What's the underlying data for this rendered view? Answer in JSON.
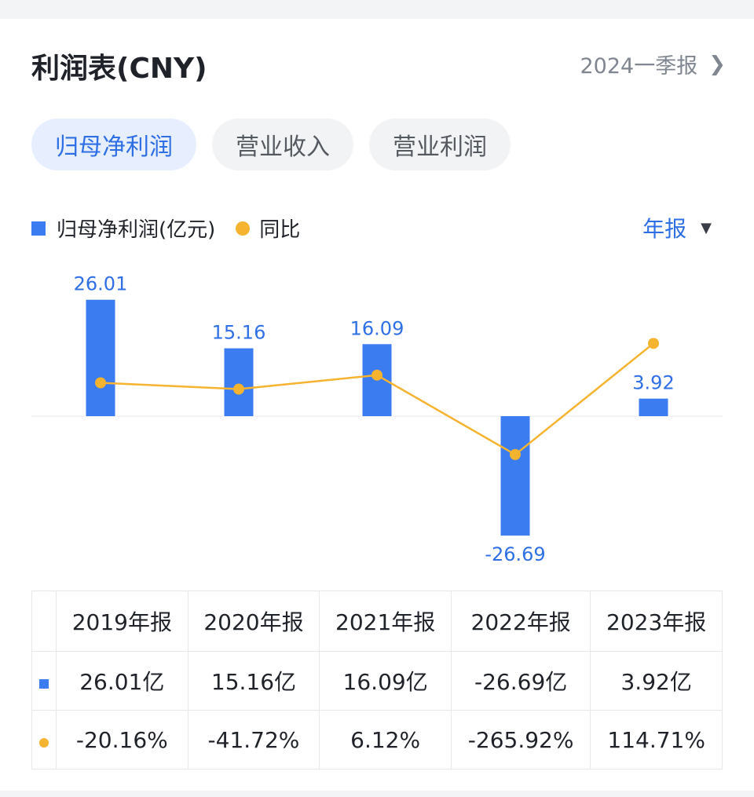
{
  "header": {
    "title": "利润表(CNY)",
    "period_link": "2024一季报"
  },
  "tabs": [
    {
      "label": "归母净利润",
      "active": true
    },
    {
      "label": "营业收入",
      "active": false
    },
    {
      "label": "营业利润",
      "active": false
    }
  ],
  "legend": {
    "bar": "归母净利润(亿元)",
    "line": "同比"
  },
  "period_select": "年报",
  "colors": {
    "bar": "#3b7cf0",
    "line": "#f5b32f",
    "positive": "#e24b4b",
    "negative": "#2aa16b",
    "accent": "#2f6fe5"
  },
  "chart_data": {
    "type": "bar",
    "categories": [
      "2019年报",
      "2020年报",
      "2021年报",
      "2022年报",
      "2023年报"
    ],
    "series": [
      {
        "name": "归母净利润(亿元)",
        "type": "bar",
        "values": [
          26.01,
          15.16,
          16.09,
          -26.69,
          3.92
        ],
        "labels": [
          "26.01",
          "15.16",
          "16.09",
          "-26.69",
          "3.92"
        ]
      },
      {
        "name": "同比",
        "type": "line",
        "values": [
          -20.16,
          -41.72,
          6.12,
          -265.92,
          114.71
        ]
      }
    ]
  },
  "table": {
    "headers": [
      "2019年报",
      "2020年报",
      "2021年报",
      "2022年报",
      "2023年报"
    ],
    "values": [
      "26.01亿",
      "15.16亿",
      "16.09亿",
      "-26.69亿",
      "3.92亿"
    ],
    "yoy": [
      "-20.16%",
      "-41.72%",
      "6.12%",
      "-265.92%",
      "114.71%"
    ]
  }
}
